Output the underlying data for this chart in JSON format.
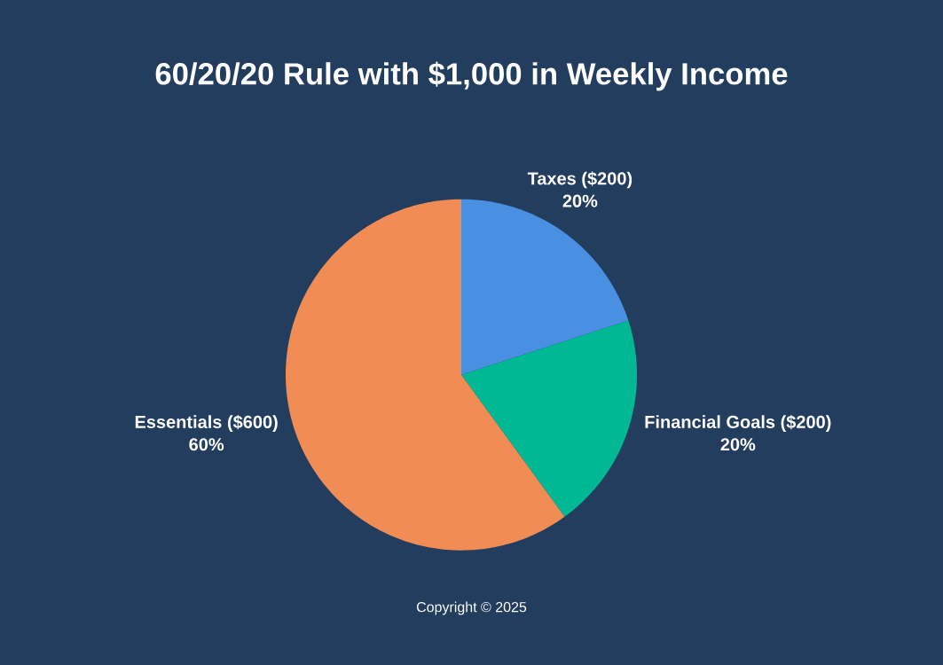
{
  "chart_data": {
    "type": "pie",
    "title": "60/20/20 Rule with $1,000 in Weekly Income",
    "categories": [
      "Taxes ($200)",
      "Financial Goals ($200)",
      "Essentials ($600)"
    ],
    "values": [
      20,
      20,
      60
    ],
    "value_labels": [
      "20%",
      "20%",
      "60%"
    ],
    "colors": [
      "#4a90e2",
      "#00b894",
      "#f28c55"
    ],
    "annotations": [
      "Copyright © 2025"
    ]
  }
}
